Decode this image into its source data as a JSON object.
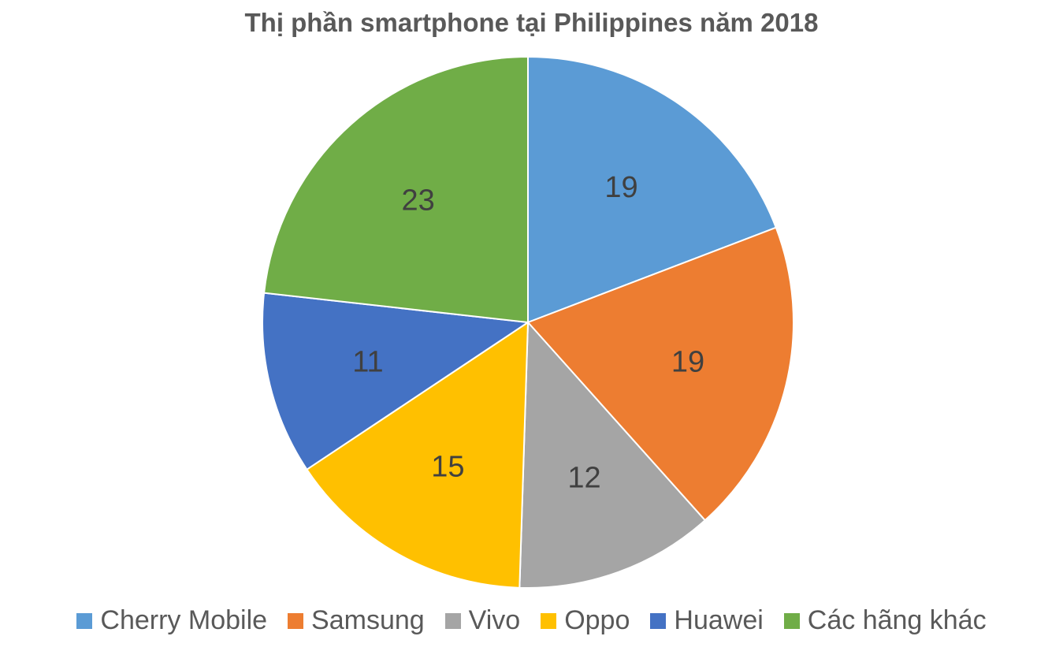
{
  "chart_data": {
    "type": "pie",
    "title": "Thị phần smartphone tại Philippines năm 2018",
    "categories": [
      "Cherry Mobile",
      "Samsung",
      "Vivo",
      "Oppo",
      "Huawei",
      "Các hãng khác"
    ],
    "values": [
      19,
      19,
      12,
      15,
      11,
      23
    ],
    "colors": [
      "#5B9BD5",
      "#ED7D31",
      "#A5A5A5",
      "#FFC000",
      "#4472C4",
      "#70AD47"
    ],
    "legend_position": "bottom",
    "start_angle": "12 o'clock, clockwise"
  }
}
